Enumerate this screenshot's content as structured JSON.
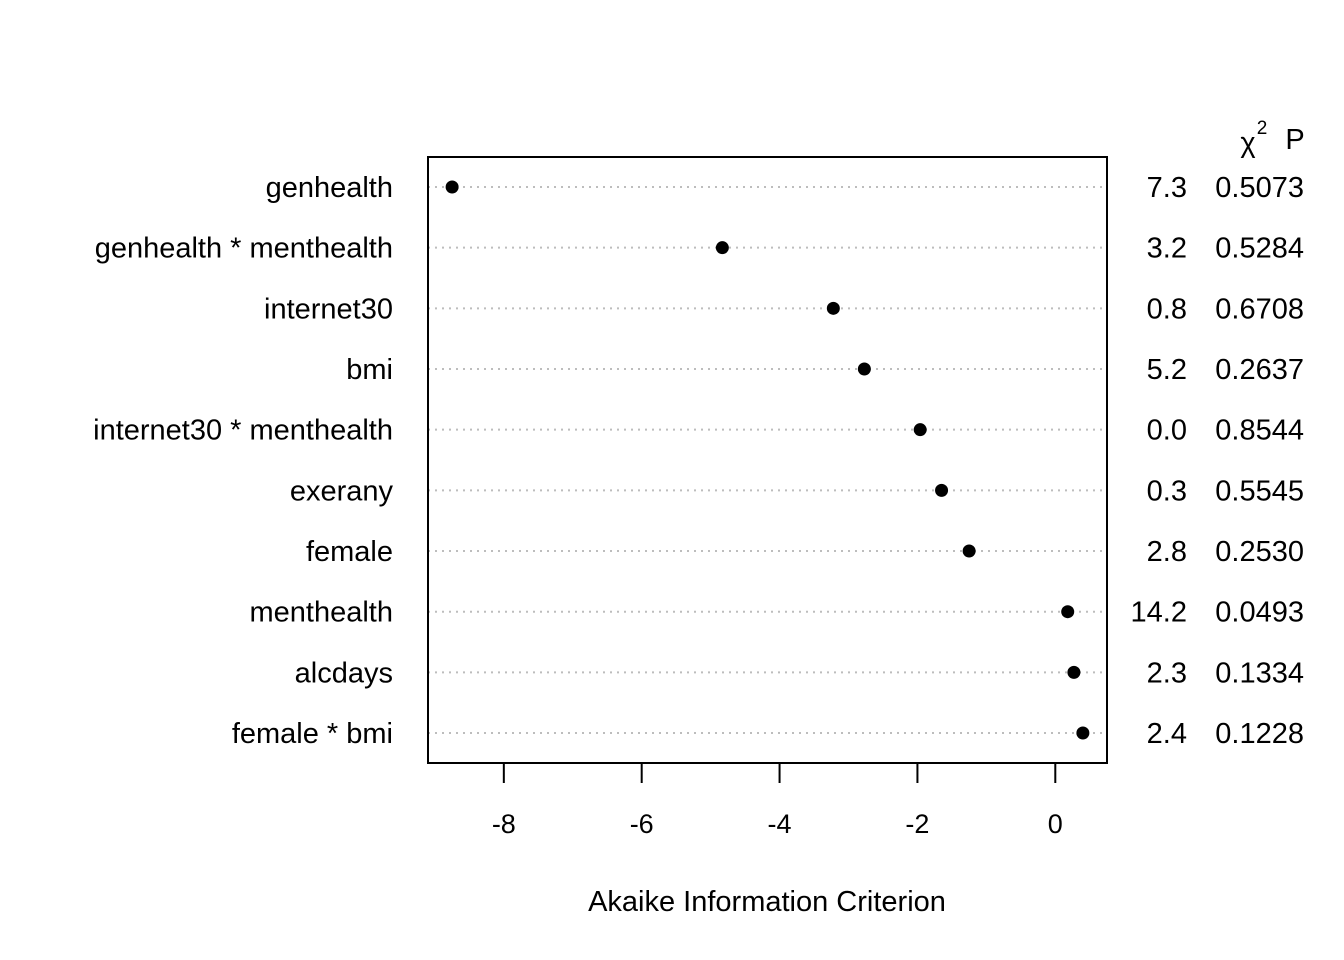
{
  "chart_data": {
    "type": "scatter",
    "title": "",
    "xlabel": "Akaike Information Criterion",
    "ylabel": "",
    "xlim": [
      -9.1,
      0.75
    ],
    "x_ticks": [
      -8,
      -6,
      -4,
      -2,
      0
    ],
    "x_tick_labels": [
      "-8",
      "-6",
      "-4",
      "-2",
      "0"
    ],
    "grid": "dotted horizontal lines per row",
    "table_headers": {
      "chisq": "χ",
      "chisq_sup": "2",
      "p": "P"
    },
    "rows": [
      {
        "label": "genhealth",
        "aic": -8.75,
        "chisq": "7.3",
        "p": "0.5073"
      },
      {
        "label": "genhealth * menthealth",
        "aic": -4.83,
        "chisq": "3.2",
        "p": "0.5284"
      },
      {
        "label": "internet30",
        "aic": -3.22,
        "chisq": "0.8",
        "p": "0.6708"
      },
      {
        "label": "bmi",
        "aic": -2.77,
        "chisq": "5.2",
        "p": "0.2637"
      },
      {
        "label": "internet30 * menthealth",
        "aic": -1.96,
        "chisq": "0.0",
        "p": "0.8544"
      },
      {
        "label": "exerany",
        "aic": -1.65,
        "chisq": "0.3",
        "p": "0.5545"
      },
      {
        "label": "female",
        "aic": -1.25,
        "chisq": "2.8",
        "p": "0.2530"
      },
      {
        "label": "menthealth",
        "aic": 0.18,
        "chisq": "14.2",
        "p": "0.0493"
      },
      {
        "label": "alcdays",
        "aic": 0.27,
        "chisq": "2.3",
        "p": "0.1334"
      },
      {
        "label": "female * bmi",
        "aic": 0.4,
        "chisq": "2.4",
        "p": "0.1228"
      }
    ]
  }
}
